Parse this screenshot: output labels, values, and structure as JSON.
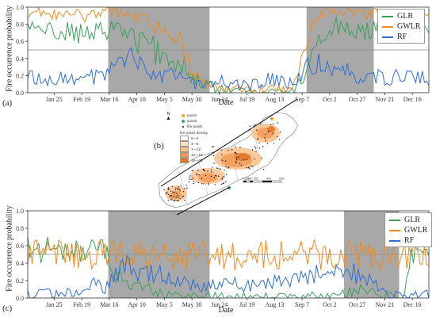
{
  "chart_data": [
    {
      "id": "a",
      "type": "line",
      "panel_label": "(a)",
      "xlabel": "Date",
      "ylabel": "Fire occurrence probability",
      "x_ticks": [
        "Jan 25",
        "Feb 19",
        "Mar 16",
        "Apr 10",
        "May 5",
        "May 30",
        "Jun 24",
        "Jul 19",
        "Aug 13",
        "Sep 7",
        "Oct 2",
        "Oct 27",
        "Nov 21",
        "Dec 16"
      ],
      "x_range_days": [
        1,
        365
      ],
      "ylim": [
        0,
        1
      ],
      "y_ticks": [
        0.0,
        0.2,
        0.4,
        0.6,
        0.8,
        1.0
      ],
      "threshold": 0.5,
      "shaded_periods_day": [
        [
          74,
          166
        ],
        [
          254,
          315
        ]
      ],
      "legend_position": "top-right",
      "series": [
        {
          "name": "GLR",
          "color": "#3aa05a",
          "day_step": 10,
          "values": [
            0.75,
            0.76,
            0.74,
            0.7,
            0.72,
            0.66,
            0.68,
            0.72,
            0.8,
            0.7,
            0.6,
            0.55,
            0.45,
            0.4,
            0.35,
            0.15,
            0.12,
            0.05,
            0.03,
            0.02,
            0.02,
            0.01,
            0.01,
            0.02,
            0.01,
            0.2,
            0.55,
            0.7,
            0.78,
            0.74,
            0.7,
            0.72,
            0.78,
            0.72,
            0.7,
            0.66,
            0.74,
            0.7
          ]
        },
        {
          "name": "GWLR",
          "color": "#f08a1c",
          "day_step": 10,
          "values": [
            0.93,
            0.94,
            0.92,
            0.9,
            0.92,
            0.88,
            0.9,
            0.94,
            0.95,
            0.9,
            0.85,
            0.82,
            0.75,
            0.72,
            0.6,
            0.2,
            0.1,
            0.05,
            0.02,
            0.05,
            0.02,
            0.02,
            0.05,
            0.02,
            0.05,
            0.5,
            0.85,
            0.92,
            0.95,
            0.93,
            0.9,
            0.92,
            0.94,
            0.9,
            0.92,
            0.86,
            0.9,
            0.88
          ]
        },
        {
          "name": "RF",
          "color": "#2f6fd6",
          "day_step": 10,
          "values": [
            0.18,
            0.18,
            0.17,
            0.18,
            0.18,
            0.17,
            0.18,
            0.18,
            0.35,
            0.45,
            0.32,
            0.28,
            0.22,
            0.2,
            0.15,
            0.12,
            0.1,
            0.12,
            0.15,
            0.1,
            0.08,
            0.12,
            0.15,
            0.12,
            0.1,
            0.25,
            0.35,
            0.3,
            0.35,
            0.28,
            0.2,
            0.18,
            0.18,
            0.18,
            0.18,
            0.18,
            0.17,
            0.18
          ]
        }
      ]
    },
    {
      "id": "c",
      "type": "line",
      "panel_label": "(c)",
      "xlabel": "Date",
      "ylabel": "Fire occurrence probability",
      "x_ticks": [
        "Jan 25",
        "Feb 19",
        "Mar 16",
        "Apr 10",
        "May 5",
        "May 30",
        "Jun 24",
        "Jul 19",
        "Aug 13",
        "Sep 7",
        "Oct 2",
        "Oct 27",
        "Nov 21",
        "Dec 16"
      ],
      "x_range_days": [
        1,
        365
      ],
      "ylim": [
        0,
        1
      ],
      "y_ticks": [
        0.0,
        0.2,
        0.4,
        0.6,
        0.8,
        1.0
      ],
      "threshold": 0.5,
      "shaded_periods_day": [
        [
          74,
          166
        ],
        [
          288,
          338
        ]
      ],
      "legend_position": "top-right",
      "series": [
        {
          "name": "GLR",
          "color": "#3aa05a",
          "day_step": 10,
          "values": [
            0.62,
            0.55,
            0.58,
            0.6,
            0.55,
            0.5,
            0.52,
            0.56,
            0.3,
            0.2,
            0.15,
            0.1,
            0.05,
            0.03,
            0.02,
            0.02,
            0.02,
            0.02,
            0.01,
            0.01,
            0.01,
            0.02,
            0.01,
            0.02,
            0.02,
            0.02,
            0.02,
            0.02,
            0.02,
            0.05,
            0.1,
            0.05,
            0.05,
            0.02,
            0.02,
            0.55,
            0.6,
            0.62
          ]
        },
        {
          "name": "GWLR",
          "color": "#f08a1c",
          "day_step": 10,
          "values": [
            0.5,
            0.5,
            0.51,
            0.49,
            0.5,
            0.48,
            0.5,
            0.49,
            0.5,
            0.48,
            0.5,
            0.49,
            0.5,
            0.5,
            0.49,
            0.49,
            0.5,
            0.5,
            0.5,
            0.49,
            0.5,
            0.5,
            0.49,
            0.5,
            0.5,
            0.5,
            0.5,
            0.49,
            0.5,
            0.51,
            0.49,
            0.5,
            0.5,
            0.49,
            0.5,
            0.5,
            0.49,
            0.5
          ]
        },
        {
          "name": "RF",
          "color": "#2f6fd6",
          "day_step": 10,
          "values": [
            0.05,
            0.05,
            0.05,
            0.05,
            0.05,
            0.05,
            0.2,
            0.08,
            0.3,
            0.35,
            0.25,
            0.3,
            0.28,
            0.25,
            0.2,
            0.15,
            0.15,
            0.15,
            0.17,
            0.16,
            0.15,
            0.18,
            0.2,
            0.18,
            0.2,
            0.25,
            0.28,
            0.3,
            0.3,
            0.35,
            0.25,
            0.2,
            0.12,
            0.05,
            0.05,
            0.05,
            0.05,
            0.05
          ]
        }
      ]
    }
  ],
  "map": {
    "panel_label": "(b)",
    "north_label": "N",
    "legend": {
      "point1": "point1",
      "point2": "point2",
      "fire_points": "fire points",
      "density_title": "fire points density",
      "classes": [
        {
          "label": "0—2",
          "color": "#ffffff"
        },
        {
          "label": "3—6",
          "color": "#fde2c2"
        },
        {
          "label": "7—12",
          "color": "#f9c08a"
        },
        {
          "label": "13—18",
          "color": "#f29a55"
        },
        {
          "label": "19—28",
          "color": "#e0762a"
        }
      ]
    },
    "point1_color": "#f5a623",
    "point2_color": "#3aa0a0",
    "scale_labels": [
      "0",
      "150",
      "300",
      "600",
      "900",
      "1200"
    ]
  },
  "colors": {
    "shade": "#a8a8a8",
    "threshold": "#888888"
  }
}
